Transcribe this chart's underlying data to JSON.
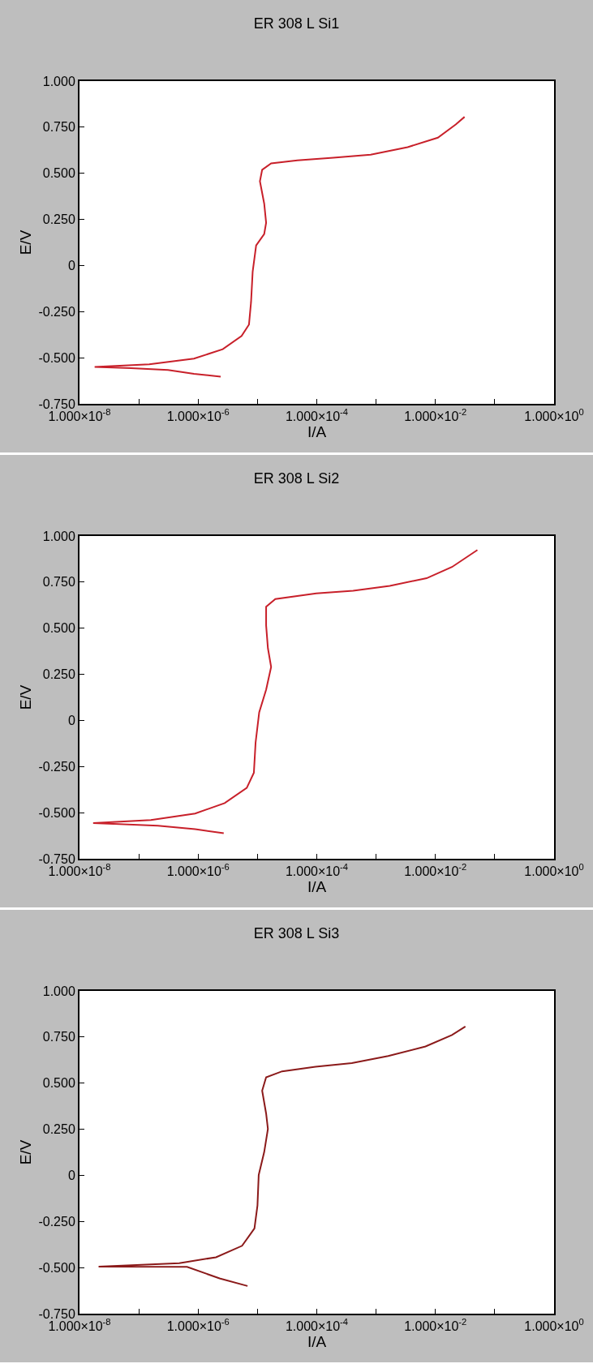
{
  "chart_data": [
    {
      "type": "line",
      "title": "ER 308 L Si1",
      "xlabel": "I/A",
      "ylabel": "E/V",
      "log": "x",
      "xlim": [
        1e-08,
        1
      ],
      "ylim": [
        -0.75,
        1
      ],
      "xticks": [
        {
          "value": 1e-08,
          "label": "1.000×10$^{-8}$"
        },
        {
          "value": 1e-07,
          "label": null
        },
        {
          "value": 1e-06,
          "label": "1.000×10$^{-6}$"
        },
        {
          "value": 1e-05,
          "label": null
        },
        {
          "value": 0.0001,
          "label": "1.000×10$^{-4}$"
        },
        {
          "value": 0.001,
          "label": null
        },
        {
          "value": 0.01,
          "label": "1.000×10$^{-2}$"
        },
        {
          "value": 0.1,
          "label": null
        },
        {
          "value": 1,
          "label": "1.000×10$^{0}$"
        }
      ],
      "yticks": [
        {
          "value": -0.75,
          "label": "-0.750"
        },
        {
          "value": -0.5,
          "label": "-0.500"
        },
        {
          "value": -0.25,
          "label": "-0.250"
        },
        {
          "value": 0,
          "label": "0"
        },
        {
          "value": 0.25,
          "label": "0.250"
        },
        {
          "value": 0.5,
          "label": "0.500"
        },
        {
          "value": 0.75,
          "label": "0.750"
        },
        {
          "value": 1,
          "label": "1.000"
        }
      ],
      "series": [
        {
          "color": "#c8202a",
          "x": [
            2.4e-06,
            8.5e-07,
            3.1e-07,
            7.4e-08,
            1.8e-08,
            1.5e-07,
            8.5e-07,
            2.6e-06,
            5.4e-06,
            7.2e-06,
            7.8e-06,
            8.3e-06,
            9.5e-06,
            1.3e-05,
            1.4e-05,
            1.3e-05,
            1.1e-05,
            1.2e-05,
            1.7e-05,
            4.7e-05,
            0.00019,
            0.00081,
            0.0034,
            0.011,
            0.022,
            0.031
          ],
          "values": [
            -0.603,
            -0.587,
            -0.566,
            -0.556,
            -0.55,
            -0.536,
            -0.505,
            -0.454,
            -0.382,
            -0.32,
            -0.198,
            -0.034,
            0.109,
            0.171,
            0.232,
            0.335,
            0.457,
            0.519,
            0.554,
            0.57,
            0.584,
            0.601,
            0.642,
            0.693,
            0.765,
            0.806
          ]
        }
      ]
    },
    {
      "type": "line",
      "title": "ER 308 L Si2",
      "xlabel": "I/A",
      "ylabel": "E/V",
      "log": "x",
      "xlim": [
        1e-08,
        1
      ],
      "ylim": [
        -0.75,
        1
      ],
      "xticks": [
        {
          "value": 1e-08,
          "label": "1.000×10$^{-8}$"
        },
        {
          "value": 1e-07,
          "label": null
        },
        {
          "value": 1e-06,
          "label": "1.000×10$^{-6}$"
        },
        {
          "value": 1e-05,
          "label": null
        },
        {
          "value": 0.0001,
          "label": "1.000×10$^{-4}$"
        },
        {
          "value": 0.001,
          "label": null
        },
        {
          "value": 0.01,
          "label": "1.000×10$^{-2}$"
        },
        {
          "value": 0.1,
          "label": null
        },
        {
          "value": 1,
          "label": "1.000×10$^{0}$"
        }
      ],
      "yticks": [
        {
          "value": -0.75,
          "label": "-0.750"
        },
        {
          "value": -0.5,
          "label": "-0.500"
        },
        {
          "value": -0.25,
          "label": "-0.250"
        },
        {
          "value": 0,
          "label": "0"
        },
        {
          "value": 0.25,
          "label": "0.250"
        },
        {
          "value": 0.5,
          "label": "0.500"
        },
        {
          "value": 0.75,
          "label": "0.750"
        },
        {
          "value": 1,
          "label": "1.000"
        }
      ],
      "series": [
        {
          "color": "#c8202a",
          "x": [
            2.7e-06,
            8.9e-07,
            2.1e-07,
            1.7e-08,
            1.6e-07,
            8.9e-07,
            2.8e-06,
            6.6e-06,
            8.7e-06,
            9.3e-06,
            1.07e-05,
            1.4e-05,
            1.7e-05,
            1.5e-05,
            1.4e-05,
            1.4e-05,
            2e-05,
            9.8e-05,
            0.00041,
            0.0017,
            0.0071,
            0.019,
            0.051
          ],
          "values": [
            -0.611,
            -0.59,
            -0.571,
            -0.556,
            -0.54,
            -0.505,
            -0.448,
            -0.366,
            -0.284,
            -0.12,
            0.044,
            0.167,
            0.29,
            0.392,
            0.515,
            0.617,
            0.658,
            0.689,
            0.703,
            0.73,
            0.771,
            0.832,
            0.924
          ]
        }
      ]
    },
    {
      "type": "line",
      "title": "ER 308 L Si3",
      "xlabel": "I/A",
      "ylabel": "E/V",
      "log": "x",
      "xlim": [
        1e-08,
        1
      ],
      "ylim": [
        -0.75,
        1
      ],
      "xticks": [
        {
          "value": 1e-08,
          "label": "1.000×10$^{-8}$"
        },
        {
          "value": 1e-07,
          "label": null
        },
        {
          "value": 1e-06,
          "label": "1.000×10$^{-6}$"
        },
        {
          "value": 1e-05,
          "label": null
        },
        {
          "value": 0.0001,
          "label": "1.000×10$^{-4}$"
        },
        {
          "value": 0.001,
          "label": null
        },
        {
          "value": 0.01,
          "label": "1.000×10$^{-2}$"
        },
        {
          "value": 0.1,
          "label": null
        },
        {
          "value": 1,
          "label": "1.000×10$^{0}$"
        }
      ],
      "yticks": [
        {
          "value": -0.75,
          "label": "-0.750"
        },
        {
          "value": -0.5,
          "label": "-0.500"
        },
        {
          "value": -0.25,
          "label": "-0.250"
        },
        {
          "value": 0,
          "label": "0"
        },
        {
          "value": 0.25,
          "label": "0.250"
        },
        {
          "value": 0.5,
          "label": "0.500"
        },
        {
          "value": 0.75,
          "label": "0.750"
        },
        {
          "value": 1,
          "label": "1.000"
        }
      ],
      "series": [
        {
          "color": "#8b1a1a",
          "x": [
            6.8e-06,
            2.3e-06,
            6.5e-07,
            2.1e-08,
            4.8e-07,
            2e-06,
            5.5e-06,
            8.9e-06,
            1e-05,
            1.05e-05,
            1.3e-05,
            1.5e-05,
            1.4e-05,
            1.2e-05,
            1.4e-05,
            2.6e-05,
            9.5e-05,
            0.00039,
            0.0016,
            0.0068,
            0.019,
            0.032
          ],
          "values": [
            -0.6,
            -0.559,
            -0.496,
            -0.495,
            -0.476,
            -0.444,
            -0.382,
            -0.288,
            -0.164,
            0.002,
            0.127,
            0.252,
            0.335,
            0.459,
            0.532,
            0.564,
            0.589,
            0.609,
            0.647,
            0.699,
            0.761,
            0.807
          ]
        }
      ]
    }
  ]
}
